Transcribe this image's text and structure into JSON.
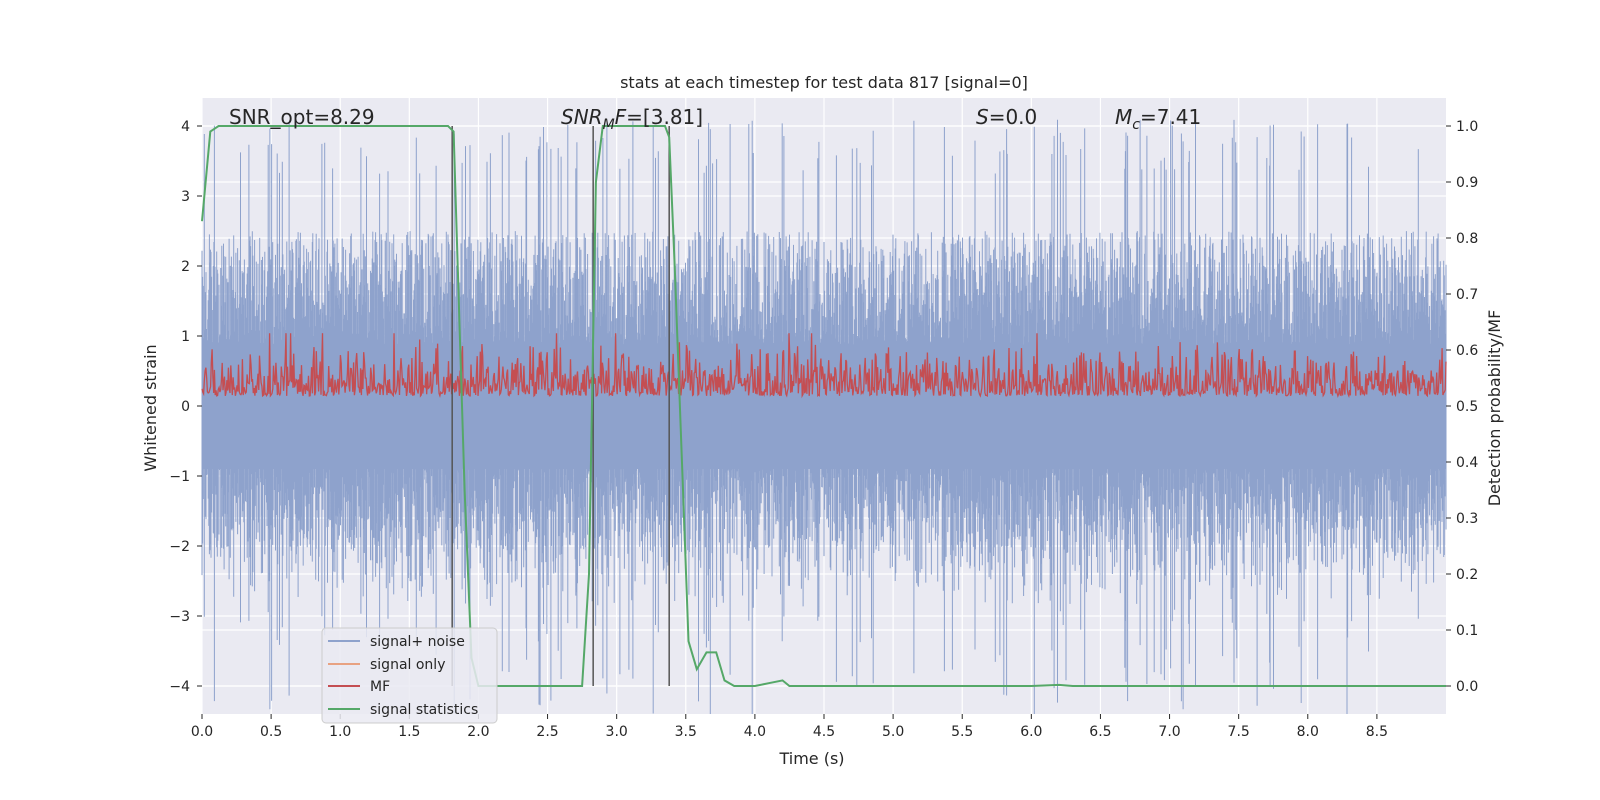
{
  "chart_data": {
    "type": "line",
    "title": "stats at each timestep for test data 817 [signal=0]",
    "xlabel": "Time (s)",
    "ylabel": "Whitened strain",
    "y2label": "Detection probability/MF",
    "xlim": [
      0.0,
      9.0
    ],
    "ylim": [
      -4.4,
      4.4
    ],
    "y2lim": [
      -0.05,
      1.05
    ],
    "grid": true,
    "x_ticks": [
      "0.0",
      "0.5",
      "1.0",
      "1.5",
      "2.0",
      "2.5",
      "3.0",
      "3.5",
      "4.0",
      "4.5",
      "5.0",
      "5.5",
      "6.0",
      "6.5",
      "7.0",
      "7.5",
      "8.0",
      "8.5"
    ],
    "y_ticks": [
      "−4",
      "−3",
      "−2",
      "−1",
      "0",
      "1",
      "2",
      "3",
      "4"
    ],
    "y2_ticks": [
      "0.0",
      "0.1",
      "0.2",
      "0.3",
      "0.4",
      "0.5",
      "0.6",
      "0.7",
      "0.8",
      "0.9",
      "1.0"
    ],
    "legend_position": "lower-left",
    "annotations": {
      "snr_opt": "SNR_opt=8.29",
      "snr_mf_var": "SNR",
      "snr_mf_sub": "M",
      "snr_mf_f": "F",
      "snr_mf_val": "=[3.81]",
      "s_var": "S",
      "s_val": "=0.0",
      "mc_var": "M",
      "mc_sub": "c",
      "mc_val": "=7.41"
    },
    "series": [
      {
        "name": "signal+ noise",
        "color": "#8ea2cc",
        "envelope_abs_max": 4.1,
        "typical_abs_max": 2.5
      },
      {
        "name": "signal only",
        "color": "#e8a282"
      },
      {
        "name": "MF",
        "color": "#c44e52",
        "axis": "right",
        "range": [
          0.5,
          0.62
        ],
        "peak": 0.63
      },
      {
        "name": "signal statistics",
        "color": "#55a868",
        "axis": "right",
        "x": [
          0.0,
          0.06,
          0.12,
          0.5,
          1.0,
          1.5,
          1.78,
          1.82,
          1.85,
          1.9,
          1.95,
          2.0,
          2.5,
          2.75,
          2.8,
          2.85,
          2.9,
          3.0,
          3.35,
          3.38,
          3.42,
          3.48,
          3.52,
          3.58,
          3.65,
          3.72,
          3.78,
          3.85,
          4.0,
          4.1,
          4.2,
          4.25,
          5.0,
          6.0,
          6.2,
          6.3,
          7.0,
          8.0,
          9.0
        ],
        "y": [
          0.83,
          0.99,
          1.0,
          1.0,
          1.0,
          1.0,
          1.0,
          0.99,
          0.75,
          0.35,
          0.05,
          0.0,
          0.0,
          0.0,
          0.2,
          0.9,
          1.0,
          1.0,
          1.0,
          0.98,
          0.75,
          0.35,
          0.08,
          0.03,
          0.06,
          0.06,
          0.01,
          0.0,
          0.0,
          0.005,
          0.01,
          0.0,
          0.0,
          0.0,
          0.002,
          0.0,
          0.0,
          0.0,
          0.0
        ]
      }
    ],
    "vertical_markers": {
      "color": "#555555",
      "x": [
        1.81,
        2.83,
        3.38
      ]
    }
  }
}
